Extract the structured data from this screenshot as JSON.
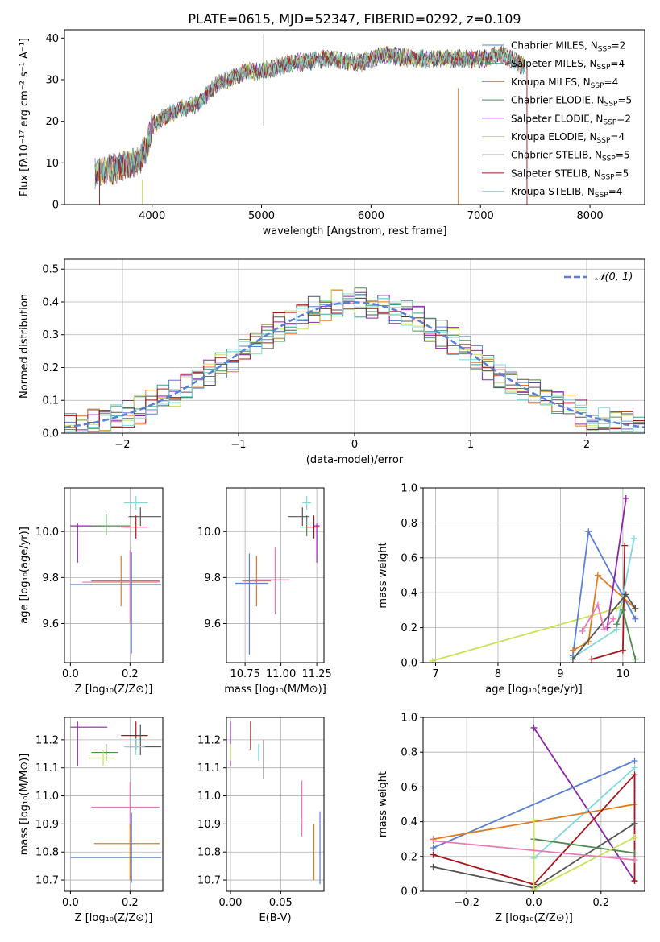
{
  "title": "PLATE=0615, MJD=52347, FIBERID=0292, z=0.109",
  "colors": {
    "chabrier_miles": "#5b7fd6",
    "salpeter_miles": "#2fa88a",
    "kroupa_miles": "#e07b1a",
    "chabrier_elodie": "#4f8a4f",
    "salpeter_elodie": "#8e24aa",
    "kroupa_elodie": "#c8e356",
    "chabrier_stelib": "#555555",
    "salpeter_stelib": "#a8141c",
    "kroupa_stelib": "#7fd9dc",
    "pink": "#e879b5"
  },
  "chart_data": [
    {
      "id": "spectrum",
      "type": "line",
      "xlabel": "wavelength [Angstrom, rest frame]",
      "ylabel": "Flux [fλ10⁻¹⁷ erg cm⁻² s⁻¹ A⁻¹]",
      "xlim": [
        3200,
        8500
      ],
      "ylim": [
        0,
        42
      ],
      "xticks": [
        "4000",
        "5000",
        "6000",
        "7000",
        "8000"
      ],
      "yticks": [
        "0",
        "10",
        "20",
        "30",
        "40"
      ],
      "grid": false,
      "legend_position": "right",
      "legend": [
        {
          "label": "Chabrier MILES, N",
          "sub": "SSP",
          "tail": "=2",
          "color_key": "chabrier_miles"
        },
        {
          "label": "Salpeter MILES, N",
          "sub": "SSP",
          "tail": "=4",
          "color_key": "salpeter_miles"
        },
        {
          "label": "Kroupa MILES, N",
          "sub": "SSP",
          "tail": "=4",
          "color_key": "kroupa_miles"
        },
        {
          "label": "Chabrier ELODIE, N",
          "sub": "SSP",
          "tail": "=5",
          "color_key": "chabrier_elodie"
        },
        {
          "label": "Salpeter ELODIE, N",
          "sub": "SSP",
          "tail": "=2",
          "color_key": "salpeter_elodie"
        },
        {
          "label": "Kroupa ELODIE, N",
          "sub": "SSP",
          "tail": "=4",
          "color_key": "kroupa_elodie"
        },
        {
          "label": "Chabrier STELIB, N",
          "sub": "SSP",
          "tail": "=5",
          "color_key": "chabrier_stelib"
        },
        {
          "label": "Salpeter STELIB, N",
          "sub": "SSP",
          "tail": "=5",
          "color_key": "salpeter_stelib"
        },
        {
          "label": "Kroupa STELIB, N",
          "sub": "SSP",
          "tail": "=4",
          "color_key": "kroupa_stelib"
        }
      ],
      "continuum": {
        "x": [
          3450,
          3550,
          3700,
          3850,
          3950,
          4000,
          4100,
          4250,
          4400,
          4600,
          4850,
          5000,
          5300,
          5600,
          5900,
          6100,
          6400,
          6800,
          7000,
          7200,
          7420
        ],
        "y": [
          7,
          8,
          9,
          10,
          13,
          19,
          21,
          23,
          24,
          29,
          32,
          32,
          34,
          35,
          34,
          36,
          35,
          35,
          35,
          36,
          33
        ]
      },
      "notes": "Nine overlapping noisy model spectra; vertical spike artifacts near 5020, 6780 and 7420 Angstrom."
    },
    {
      "id": "residuals",
      "type": "histogram",
      "xlabel": "(data-model)/error",
      "ylabel": "Normed distribution",
      "xlim": [
        -2.5,
        2.5
      ],
      "ylim": [
        0,
        0.53
      ],
      "xticks": [
        "−2",
        "−1",
        "0",
        "1",
        "2"
      ],
      "yticks": [
        "0.0",
        "0.1",
        "0.2",
        "0.3",
        "0.4",
        "0.5"
      ],
      "grid": true,
      "legend_position": "top-right",
      "legend": [
        {
          "label": "𝒩(0, 1)",
          "style": "dashed",
          "color_key": "chabrier_miles"
        }
      ],
      "bin_width": 0.1,
      "gaussian": {
        "mean": 0,
        "sigma": 1
      }
    },
    {
      "id": "age_vs_Z",
      "type": "errorbar",
      "xlabel": "Z [log₁₀(Z/Z⊙)]",
      "ylabel": "age  [log₁₀(age/yr)]",
      "xlim": [
        -0.02,
        0.31
      ],
      "ylim": [
        9.43,
        10.19
      ],
      "xticks": [
        "0.0",
        "0.2"
      ],
      "yticks": [
        "9.6",
        "9.8",
        "10.0"
      ],
      "grid": true,
      "points": [
        {
          "x": 0.024,
          "xerr": [
            0.024,
            0.08
          ],
          "y": 10.025,
          "yerr": [
            0.16,
            0.01
          ],
          "color_key": "salpeter_elodie"
        },
        {
          "x": 0.12,
          "xerr": [
            0.05,
            0.08
          ],
          "y": 10.025,
          "yerr": [
            0.04,
            0.05
          ],
          "color_key": "chabrier_elodie"
        },
        {
          "x": 0.22,
          "xerr": [
            0.05,
            0.04
          ],
          "y": 10.02,
          "yerr": [
            0.05,
            0.05
          ],
          "color_key": "salpeter_stelib"
        },
        {
          "x": 0.235,
          "xerr": [
            0.04,
            0.07
          ],
          "y": 10.065,
          "yerr": [
            0.04,
            0.04
          ],
          "color_key": "chabrier_stelib"
        },
        {
          "x": 0.22,
          "xerr": [
            0.04,
            0.04
          ],
          "y": 10.125,
          "yerr": [
            0.03,
            0.03
          ],
          "color_key": "kroupa_stelib"
        },
        {
          "x": 0.17,
          "xerr": [
            0.1,
            0.13
          ],
          "y": 9.785,
          "yerr": [
            0.11,
            0.11
          ],
          "color_key": "kroupa_miles"
        },
        {
          "x": 0.2,
          "xerr": [
            0.16,
            0.1
          ],
          "y": 9.78,
          "yerr": [
            0.18,
            0.14
          ],
          "color_key": "pink"
        },
        {
          "x": 0.205,
          "xerr": [
            0.205,
            0.1
          ],
          "y": 9.77,
          "yerr": [
            0.3,
            0.14
          ],
          "color_key": "chabrier_miles"
        }
      ]
    },
    {
      "id": "age_vs_mass",
      "type": "errorbar",
      "xlabel": "mass [log₁₀(M/M⊙)]",
      "ylabel": "",
      "xlim": [
        10.62,
        11.3
      ],
      "ylim": [
        9.43,
        10.19
      ],
      "xticks": [
        "10.75",
        "11.00",
        "11.25"
      ],
      "yticks": [
        "9.6",
        "9.8",
        "10.0"
      ],
      "grid": true,
      "points": [
        {
          "x": 11.25,
          "xerr": [
            0.02,
            0.02
          ],
          "y": 10.025,
          "yerr": [
            0.16,
            0.01
          ],
          "color_key": "salpeter_elodie"
        },
        {
          "x": 11.18,
          "xerr": [
            0.05,
            0.04
          ],
          "y": 10.02,
          "yerr": [
            0.04,
            0.05
          ],
          "color_key": "chabrier_elodie"
        },
        {
          "x": 11.23,
          "xerr": [
            0.05,
            0.04
          ],
          "y": 10.02,
          "yerr": [
            0.05,
            0.05
          ],
          "color_key": "salpeter_stelib"
        },
        {
          "x": 11.15,
          "xerr": [
            0.1,
            0.05
          ],
          "y": 10.065,
          "yerr": [
            0.04,
            0.04
          ],
          "color_key": "chabrier_stelib"
        },
        {
          "x": 11.18,
          "xerr": [
            0.03,
            0.03
          ],
          "y": 10.125,
          "yerr": [
            0.03,
            0.03
          ],
          "color_key": "kroupa_stelib"
        },
        {
          "x": 10.83,
          "xerr": [
            0.1,
            0.1
          ],
          "y": 9.785,
          "yerr": [
            0.11,
            0.11
          ],
          "color_key": "kroupa_miles"
        },
        {
          "x": 10.96,
          "xerr": [
            0.16,
            0.1
          ],
          "y": 9.79,
          "yerr": [
            0.15,
            0.14
          ],
          "color_key": "pink"
        },
        {
          "x": 10.78,
          "xerr": [
            0.1,
            0.13
          ],
          "y": 9.775,
          "yerr": [
            0.31,
            0.13
          ],
          "color_key": "chabrier_miles"
        }
      ]
    },
    {
      "id": "weight_vs_age",
      "type": "line",
      "xlabel": "age  [log₁₀(age/yr)]",
      "ylabel": "mass weight",
      "xlim": [
        6.8,
        10.35
      ],
      "ylim": [
        0,
        1
      ],
      "xticks": [
        "7",
        "8",
        "9",
        "10"
      ],
      "yticks": [
        "0.0",
        "0.2",
        "0.4",
        "0.6",
        "0.8",
        "1.0"
      ],
      "grid": true,
      "series": [
        {
          "color_key": "kroupa_elodie",
          "x": [
            6.95,
            9.9,
            10.0
          ],
          "y": [
            0.01,
            0.31,
            0.33
          ]
        },
        {
          "color_key": "chabrier_miles",
          "x": [
            9.2,
            9.45,
            10.2
          ],
          "y": [
            0.04,
            0.75,
            0.25
          ]
        },
        {
          "color_key": "kroupa_miles",
          "x": [
            9.2,
            9.45,
            9.6,
            10.2
          ],
          "y": [
            0.07,
            0.12,
            0.5,
            0.31
          ]
        },
        {
          "color_key": "salpeter_elodie",
          "x": [
            9.75,
            10.05
          ],
          "y": [
            0.2,
            0.94
          ]
        },
        {
          "color_key": "salpeter_stelib",
          "x": [
            9.5,
            10.0,
            10.03
          ],
          "y": [
            0.02,
            0.07,
            0.67
          ]
        },
        {
          "color_key": "kroupa_stelib",
          "x": [
            9.2,
            9.9,
            10.18
          ],
          "y": [
            0.03,
            0.19,
            0.71
          ]
        },
        {
          "color_key": "chabrier_stelib",
          "x": [
            9.2,
            10.05,
            10.2
          ],
          "y": [
            0.02,
            0.39,
            0.31
          ]
        },
        {
          "color_key": "chabrier_elodie",
          "x": [
            9.9,
            10.0,
            10.2
          ],
          "y": [
            0.22,
            0.3,
            0.02
          ]
        },
        {
          "color_key": "pink",
          "x": [
            9.35,
            9.6,
            9.7,
            9.85
          ],
          "y": [
            0.18,
            0.33,
            0.19,
            0.25
          ]
        }
      ]
    },
    {
      "id": "mass_vs_Z",
      "type": "errorbar",
      "xlabel": "Z [log₁₀(Z/Z⊙)]",
      "ylabel": "mass [log₁₀(M/M⊙)]",
      "xlim": [
        -0.02,
        0.31
      ],
      "ylim": [
        10.66,
        11.28
      ],
      "xticks": [
        "0.0",
        "0.2"
      ],
      "yticks": [
        "10.7",
        "10.8",
        "10.9",
        "11.0",
        "11.1",
        "11.2"
      ],
      "grid": true,
      "points": [
        {
          "x": 0.024,
          "xerr": [
            0.024,
            0.1
          ],
          "y": 11.245,
          "yerr": [
            0.14,
            0.02
          ],
          "color_key": "salpeter_elodie"
        },
        {
          "x": 0.22,
          "xerr": [
            0.05,
            0.04
          ],
          "y": 11.215,
          "yerr": [
            0.05,
            0.05
          ],
          "color_key": "salpeter_stelib"
        },
        {
          "x": 0.12,
          "xerr": [
            0.05,
            0.04
          ],
          "y": 11.155,
          "yerr": [
            0.03,
            0.03
          ],
          "color_key": "chabrier_elodie"
        },
        {
          "x": 0.11,
          "xerr": [
            0.05,
            0.04
          ],
          "y": 11.135,
          "yerr": [
            0.03,
            0.03
          ],
          "color_key": "kroupa_elodie"
        },
        {
          "x": 0.235,
          "xerr": [
            0.05,
            0.07
          ],
          "y": 11.175,
          "yerr": [
            0.03,
            0.08
          ],
          "color_key": "chabrier_stelib"
        },
        {
          "x": 0.22,
          "xerr": [
            0.04,
            0.03
          ],
          "y": 11.175,
          "yerr": [
            0.03,
            0.03
          ],
          "color_key": "kroupa_stelib"
        },
        {
          "x": 0.2,
          "xerr": [
            0.13,
            0.1
          ],
          "y": 10.96,
          "yerr": [
            0.08,
            0.09
          ],
          "color_key": "pink"
        },
        {
          "x": 0.2,
          "xerr": [
            0.12,
            0.1
          ],
          "y": 10.83,
          "yerr": [
            0.13,
            0.07
          ],
          "color_key": "kroupa_miles"
        },
        {
          "x": 0.205,
          "xerr": [
            0.205,
            0.1
          ],
          "y": 10.78,
          "yerr": [
            0.09,
            0.16
          ],
          "color_key": "chabrier_miles"
        }
      ]
    },
    {
      "id": "mass_vs_ebv",
      "type": "errorbar",
      "xlabel": "E(B-V)",
      "ylabel": "",
      "xlim": [
        -0.004,
        0.093
      ],
      "ylim": [
        10.66,
        11.28
      ],
      "xticks": [
        "0.00",
        "0.05"
      ],
      "yticks": [
        "10.7",
        "10.8",
        "10.9",
        "11.0",
        "11.1",
        "11.2"
      ],
      "grid": true,
      "points": [
        {
          "x": 0.0,
          "xerr": [
            0,
            0
          ],
          "y": 11.245,
          "yerr": [
            0.14,
            0.02
          ],
          "color_key": "salpeter_elodie"
        },
        {
          "x": 0.0,
          "xerr": [
            0,
            0
          ],
          "y": 11.155,
          "yerr": [
            0.03,
            0.03
          ],
          "color_key": "kroupa_elodie"
        },
        {
          "x": 0.02,
          "xerr": [
            0,
            0
          ],
          "y": 11.215,
          "yerr": [
            0.05,
            0.05
          ],
          "color_key": "salpeter_stelib"
        },
        {
          "x": 0.028,
          "xerr": [
            0,
            0
          ],
          "y": 11.155,
          "yerr": [
            0.03,
            0.03
          ],
          "color_key": "kroupa_stelib"
        },
        {
          "x": 0.033,
          "xerr": [
            0,
            0
          ],
          "y": 11.13,
          "yerr": [
            0.07,
            0.07
          ],
          "color_key": "chabrier_stelib"
        },
        {
          "x": 0.071,
          "xerr": [
            0,
            0
          ],
          "y": 10.955,
          "yerr": [
            0.1,
            0.1
          ],
          "color_key": "pink"
        },
        {
          "x": 0.083,
          "xerr": [
            0,
            0
          ],
          "y": 10.8,
          "yerr": [
            0.1,
            0.1
          ],
          "color_key": "kroupa_miles"
        },
        {
          "x": 0.089,
          "xerr": [
            0,
            0
          ],
          "y": 10.815,
          "yerr": [
            0.13,
            0.13
          ],
          "color_key": "chabrier_miles"
        }
      ]
    },
    {
      "id": "weight_vs_Z",
      "type": "line",
      "xlabel": "Z [log₁₀(Z/Z⊙)]",
      "ylabel": "mass weight",
      "xlim": [
        -0.33,
        0.33
      ],
      "ylim": [
        0,
        1
      ],
      "xticks": [
        "−0.2",
        "0.0",
        "0.2"
      ],
      "yticks": [
        "0.0",
        "0.2",
        "0.4",
        "0.6",
        "0.8",
        "1.0"
      ],
      "grid": true,
      "series": [
        {
          "color_key": "salpeter_elodie",
          "x": [
            0.0,
            0.3
          ],
          "y": [
            0.94,
            0.06
          ]
        },
        {
          "color_key": "chabrier_miles",
          "x": [
            -0.3,
            0.3
          ],
          "y": [
            0.25,
            0.75
          ]
        },
        {
          "color_key": "kroupa_stelib",
          "x": [
            0.0,
            0.3
          ],
          "y": [
            0.19,
            0.71
          ]
        },
        {
          "color_key": "kroupa_miles",
          "x": [
            -0.3,
            0.3
          ],
          "y": [
            0.3,
            0.5
          ]
        },
        {
          "color_key": "salpeter_stelib",
          "x": [
            -0.3,
            0.0,
            0.3,
            0.3
          ],
          "y": [
            0.21,
            0.04,
            0.67,
            0.06
          ]
        },
        {
          "color_key": "chabrier_stelib",
          "x": [
            -0.3,
            0.0,
            0.3
          ],
          "y": [
            0.14,
            0.02,
            0.39
          ]
        },
        {
          "color_key": "chabrier_elodie",
          "x": [
            0.0,
            0.3
          ],
          "y": [
            0.3,
            0.22
          ]
        },
        {
          "color_key": "kroupa_elodie",
          "x": [
            0.0,
            0.0,
            0.3
          ],
          "y": [
            0.41,
            0.01,
            0.31
          ]
        },
        {
          "color_key": "pink",
          "x": [
            -0.3,
            0.3
          ],
          "y": [
            0.29,
            0.18
          ]
        }
      ]
    }
  ]
}
